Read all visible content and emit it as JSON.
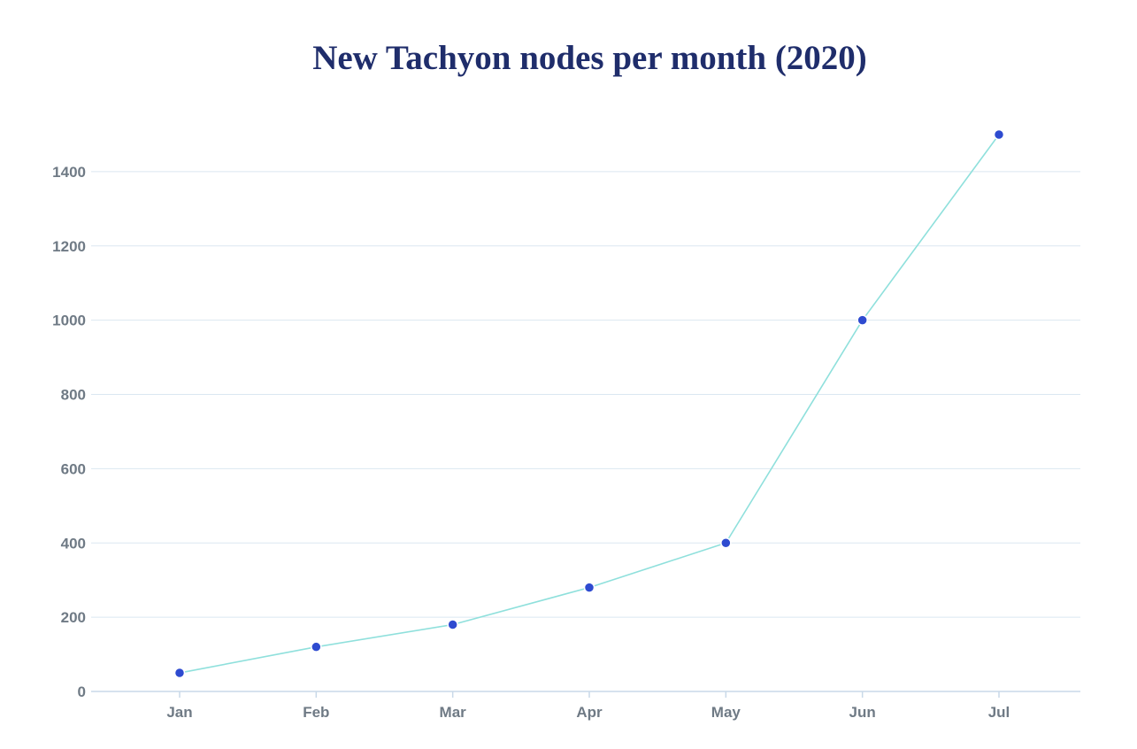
{
  "chart_data": {
    "type": "line",
    "title": "New Tachyon nodes per month (2020)",
    "xlabel": "",
    "ylabel": "",
    "categories": [
      "Jan",
      "Feb",
      "Mar",
      "Apr",
      "May",
      "Jun",
      "Jul"
    ],
    "series": [
      {
        "values": [
          50,
          120,
          180,
          280,
          400,
          1000,
          1500
        ]
      }
    ],
    "ylim": [
      0,
      1500
    ],
    "yticks": [
      0,
      200,
      400,
      600,
      800,
      1000,
      1200,
      1400
    ],
    "ytick_labels": [
      "0",
      "200",
      "400",
      "600",
      "800",
      "1000",
      "1200",
      "1400"
    ],
    "grid": true,
    "legend": "none",
    "colors": {
      "line": "#8fe0dc",
      "marker": "#2e4bd0",
      "grid": "#dbe7f1",
      "axis": "#c9d9e8",
      "tick_label": "#6f7a85",
      "title": "#1f2d6b"
    }
  }
}
